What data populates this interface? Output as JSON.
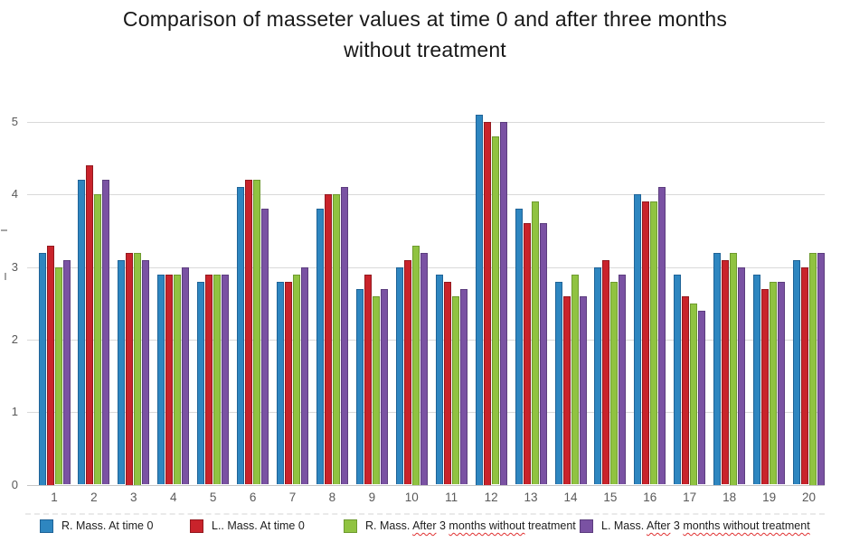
{
  "chart_data": {
    "type": "bar",
    "title": "Comparison of masseter values at time 0 and after three months without treatment",
    "title_lines": [
      "Comparison of masseter values at time 0 and after three months",
      "without treatment"
    ],
    "xlabel": "",
    "ylabel": "",
    "ylim": [
      0,
      5.45
    ],
    "yticks": [
      0,
      1,
      2,
      3,
      4,
      5
    ],
    "grid": true,
    "legend_position": "bottom",
    "categories": [
      "1",
      "2",
      "3",
      "4",
      "5",
      "6",
      "7",
      "8",
      "9",
      "10",
      "11",
      "12",
      "13",
      "14",
      "15",
      "16",
      "17",
      "18",
      "19",
      "20"
    ],
    "series": [
      {
        "name": "R. Mass. At time 0",
        "color": "#2E86C0",
        "edge": "#1F6397",
        "values": [
          3.2,
          4.2,
          3.1,
          2.9,
          2.8,
          4.1,
          2.8,
          3.8,
          2.7,
          3.0,
          2.9,
          5.1,
          3.8,
          2.8,
          3.0,
          4.0,
          2.9,
          3.2,
          2.9,
          3.1
        ]
      },
      {
        "name": "L.. Mass. At time 0",
        "color": "#C9232B",
        "edge": "#93191F",
        "values": [
          3.3,
          4.4,
          3.2,
          2.9,
          2.9,
          4.2,
          2.8,
          4.0,
          2.9,
          3.1,
          2.8,
          5.0,
          3.6,
          2.6,
          3.1,
          3.9,
          2.6,
          3.1,
          2.7,
          3.0
        ]
      },
      {
        "name": "R. Mass. After 3 months without treatment",
        "color": "#90C341",
        "edge": "#6E9A2F",
        "values": [
          3.0,
          4.0,
          3.2,
          2.9,
          2.9,
          4.2,
          2.9,
          4.0,
          2.6,
          3.3,
          2.6,
          4.8,
          3.9,
          2.9,
          2.8,
          3.9,
          2.5,
          3.2,
          2.8,
          3.2
        ]
      },
      {
        "name": "L. Mass. After 3 months without treatment",
        "color": "#7A52A3",
        "edge": "#5C3D7E",
        "values": [
          3.1,
          4.2,
          3.1,
          3.0,
          2.9,
          3.8,
          3.0,
          4.1,
          2.7,
          3.2,
          2.7,
          5.0,
          3.6,
          2.6,
          2.9,
          4.1,
          2.4,
          3.0,
          2.8,
          3.2
        ]
      }
    ],
    "legend": {
      "squiggle_color": "#E03131",
      "items": [
        {
          "label": "R. Mass. At time 0",
          "segments": [
            {
              "text": "R. Mass. At time 0",
              "misspelled": false
            }
          ]
        },
        {
          "label": "L.. Mass. At time 0",
          "segments": [
            {
              "text": "L.. Mass. At time 0",
              "misspelled": false
            }
          ]
        },
        {
          "label": "R. Mass. After 3 months without treatment",
          "segments": [
            {
              "text": "R. Mass. ",
              "misspelled": false
            },
            {
              "text": "After",
              "misspelled": true
            },
            {
              "text": " 3 ",
              "misspelled": false
            },
            {
              "text": "months without",
              "misspelled": true
            },
            {
              "text": " treatment",
              "misspelled": false
            }
          ]
        },
        {
          "label": "L. Mass. After 3 months without treatment",
          "segments": [
            {
              "text": "L. Mass. ",
              "misspelled": false
            },
            {
              "text": "After",
              "misspelled": true
            },
            {
              "text": " 3 ",
              "misspelled": false
            },
            {
              "text": "months without treatment",
              "misspelled": true
            }
          ]
        }
      ]
    }
  },
  "colors": {
    "gridline": "#D9D9D9",
    "axis_line": "#C6C6C6",
    "tick_label": "#595959",
    "title": "#181818"
  }
}
